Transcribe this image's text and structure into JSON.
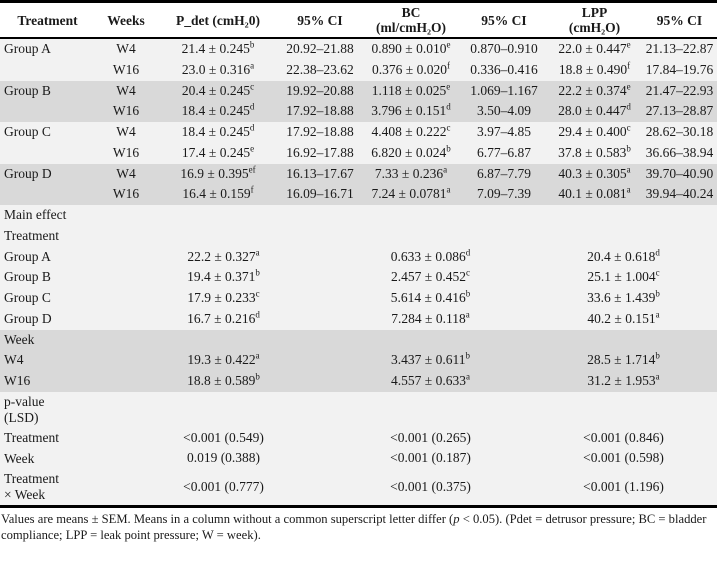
{
  "header": {
    "columns": [
      {
        "id": "treatment",
        "label": "Treatment"
      },
      {
        "id": "weeks",
        "label": "Weeks"
      },
      {
        "id": "pdet",
        "label": "P_det (cmH₂0)"
      },
      {
        "id": "pdet_ci",
        "label": "95% CI"
      },
      {
        "id": "bc",
        "label": "BC\n(ml/cmH₂O)"
      },
      {
        "id": "bc_ci",
        "label": "95% CI"
      },
      {
        "id": "lpp",
        "label": "LPP\n(cmH₂O)"
      },
      {
        "id": "lpp_ci",
        "label": "95% CI"
      }
    ]
  },
  "groups": [
    {
      "treatment": "Group A",
      "shade": "light",
      "rows": [
        {
          "week": "W4",
          "pdet": "21.4 ± 0.245",
          "pdet_sup": "b",
          "pdet_ci": "20.92–21.88",
          "bc": "0.890 ± 0.010",
          "bc_sup": "e",
          "bc_ci": "0.870–0.910",
          "lpp": "22.0 ± 0.447",
          "lpp_sup": "e",
          "lpp_ci": "21.13–22.87"
        },
        {
          "week": "W16",
          "pdet": "23.0 ± 0.316",
          "pdet_sup": "a",
          "pdet_ci": "22.38–23.62",
          "bc": "0.376 ± 0.020",
          "bc_sup": "f",
          "bc_ci": "0.336–0.416",
          "lpp": "18.8 ± 0.490",
          "lpp_sup": "f",
          "lpp_ci": "17.84–19.76"
        }
      ]
    },
    {
      "treatment": "Group B",
      "shade": "shaded",
      "rows": [
        {
          "week": "W4",
          "pdet": "20.4 ± 0.245",
          "pdet_sup": "c",
          "pdet_ci": "19.92–20.88",
          "bc": "1.118 ± 0.025",
          "bc_sup": "e",
          "bc_ci": "1.069–1.167",
          "lpp": "22.2 ± 0.374",
          "lpp_sup": "e",
          "lpp_ci": "21.47–22.93"
        },
        {
          "week": "W16",
          "pdet": "18.4 ± 0.245",
          "pdet_sup": "d",
          "pdet_ci": "17.92–18.88",
          "bc": "3.796 ± 0.151",
          "bc_sup": "d",
          "bc_ci": "3.50–4.09",
          "lpp": "28.0 ± 0.447",
          "lpp_sup": "d",
          "lpp_ci": "27.13–28.87"
        }
      ]
    },
    {
      "treatment": "Group C",
      "shade": "light",
      "rows": [
        {
          "week": "W4",
          "pdet": "18.4 ± 0.245",
          "pdet_sup": "d",
          "pdet_ci": "17.92–18.88",
          "bc": "4.408 ± 0.222",
          "bc_sup": "c",
          "bc_ci": "3.97–4.85",
          "lpp": "29.4 ± 0.400",
          "lpp_sup": "c",
          "lpp_ci": "28.62–30.18"
        },
        {
          "week": "W16",
          "pdet": "17.4 ± 0.245",
          "pdet_sup": "e",
          "pdet_ci": "16.92–17.88",
          "bc": "6.820 ± 0.024",
          "bc_sup": "b",
          "bc_ci": "6.77–6.87",
          "lpp": "37.8 ± 0.583",
          "lpp_sup": "b",
          "lpp_ci": "36.66–38.94"
        }
      ]
    },
    {
      "treatment": "Group D",
      "shade": "shaded",
      "rows": [
        {
          "week": "W4",
          "pdet": "16.9 ± 0.395",
          "pdet_sup": "ef",
          "pdet_ci": "16.13–17.67",
          "bc": "7.33 ± 0.236",
          "bc_sup": "a",
          "bc_ci": "6.87–7.79",
          "lpp": "40.3 ± 0.305",
          "lpp_sup": "a",
          "lpp_ci": "39.70–40.90"
        },
        {
          "week": "W16",
          "pdet": "16.4 ± 0.159",
          "pdet_sup": "f",
          "pdet_ci": "16.09–16.71",
          "bc": "7.24 ± 0.0781",
          "bc_sup": "a",
          "bc_ci": "7.09–7.39",
          "lpp": "40.1 ± 0.081",
          "lpp_sup": "a",
          "lpp_ci": "39.94–40.24"
        }
      ]
    }
  ],
  "main_effect": {
    "label": "Main effect",
    "treatment": {
      "label": "Treatment",
      "rows": [
        {
          "label": "Group A",
          "pdet": "22.2 ± 0.327",
          "pdet_sup": "a",
          "bc": "0.633 ± 0.086",
          "bc_sup": "d",
          "lpp": "20.4 ± 0.618",
          "lpp_sup": "d"
        },
        {
          "label": "Group B",
          "pdet": "19.4 ± 0.371",
          "pdet_sup": "b",
          "bc": "2.457 ± 0.452",
          "bc_sup": "c",
          "lpp": "25.1 ± 1.004",
          "lpp_sup": "c"
        },
        {
          "label": "Group C",
          "pdet": "17.9 ± 0.233",
          "pdet_sup": "c",
          "bc": "5.614 ± 0.416",
          "bc_sup": "b",
          "lpp": "33.6 ± 1.439",
          "lpp_sup": "b"
        },
        {
          "label": "Group D",
          "pdet": "16.7 ± 0.216",
          "pdet_sup": "d",
          "bc": "7.284 ± 0.118",
          "bc_sup": "a",
          "lpp": "40.2 ± 0.151",
          "lpp_sup": "a"
        }
      ]
    },
    "week": {
      "label": "Week",
      "rows": [
        {
          "label": "W4",
          "pdet": "19.3 ± 0.422",
          "pdet_sup": "a",
          "bc": "3.437 ± 0.611",
          "bc_sup": "b",
          "lpp": "28.5 ± 1.714",
          "lpp_sup": "b"
        },
        {
          "label": "W16",
          "pdet": "18.8 ± 0.589",
          "pdet_sup": "b",
          "bc": "4.557 ± 0.633",
          "bc_sup": "a",
          "lpp": "31.2 ± 1.953",
          "lpp_sup": "a"
        }
      ]
    }
  },
  "pvalues": {
    "label": "p-value\n(LSD)",
    "rows": [
      {
        "label": "Treatment",
        "pdet": "<0.001 (0.549)",
        "bc": "<0.001 (0.265)",
        "lpp": "<0.001 (0.846)"
      },
      {
        "label": "Week",
        "pdet": "0.019 (0.388)",
        "bc": "<0.001 (0.187)",
        "lpp": "<0.001 (0.598)"
      },
      {
        "label": "Treatment\n× Week",
        "pdet": "<0.001 (0.777)",
        "bc": "<0.001 (0.375)",
        "lpp": "<0.001 (1.196)"
      }
    ]
  },
  "footnote": {
    "part1": "Values are means ± SEM. Means in a column without a common superscript letter differ (",
    "italic_p": "p",
    "part2": " < 0.05). (Pdet = detrusor pressure; BC = bladder compliance; LPP = leak point pressure; W = week)."
  },
  "colors": {
    "row_light": "#f2f2f2",
    "row_shaded": "#d9d9d9",
    "table_border": "#000000",
    "text": "#1a1a1a"
  }
}
